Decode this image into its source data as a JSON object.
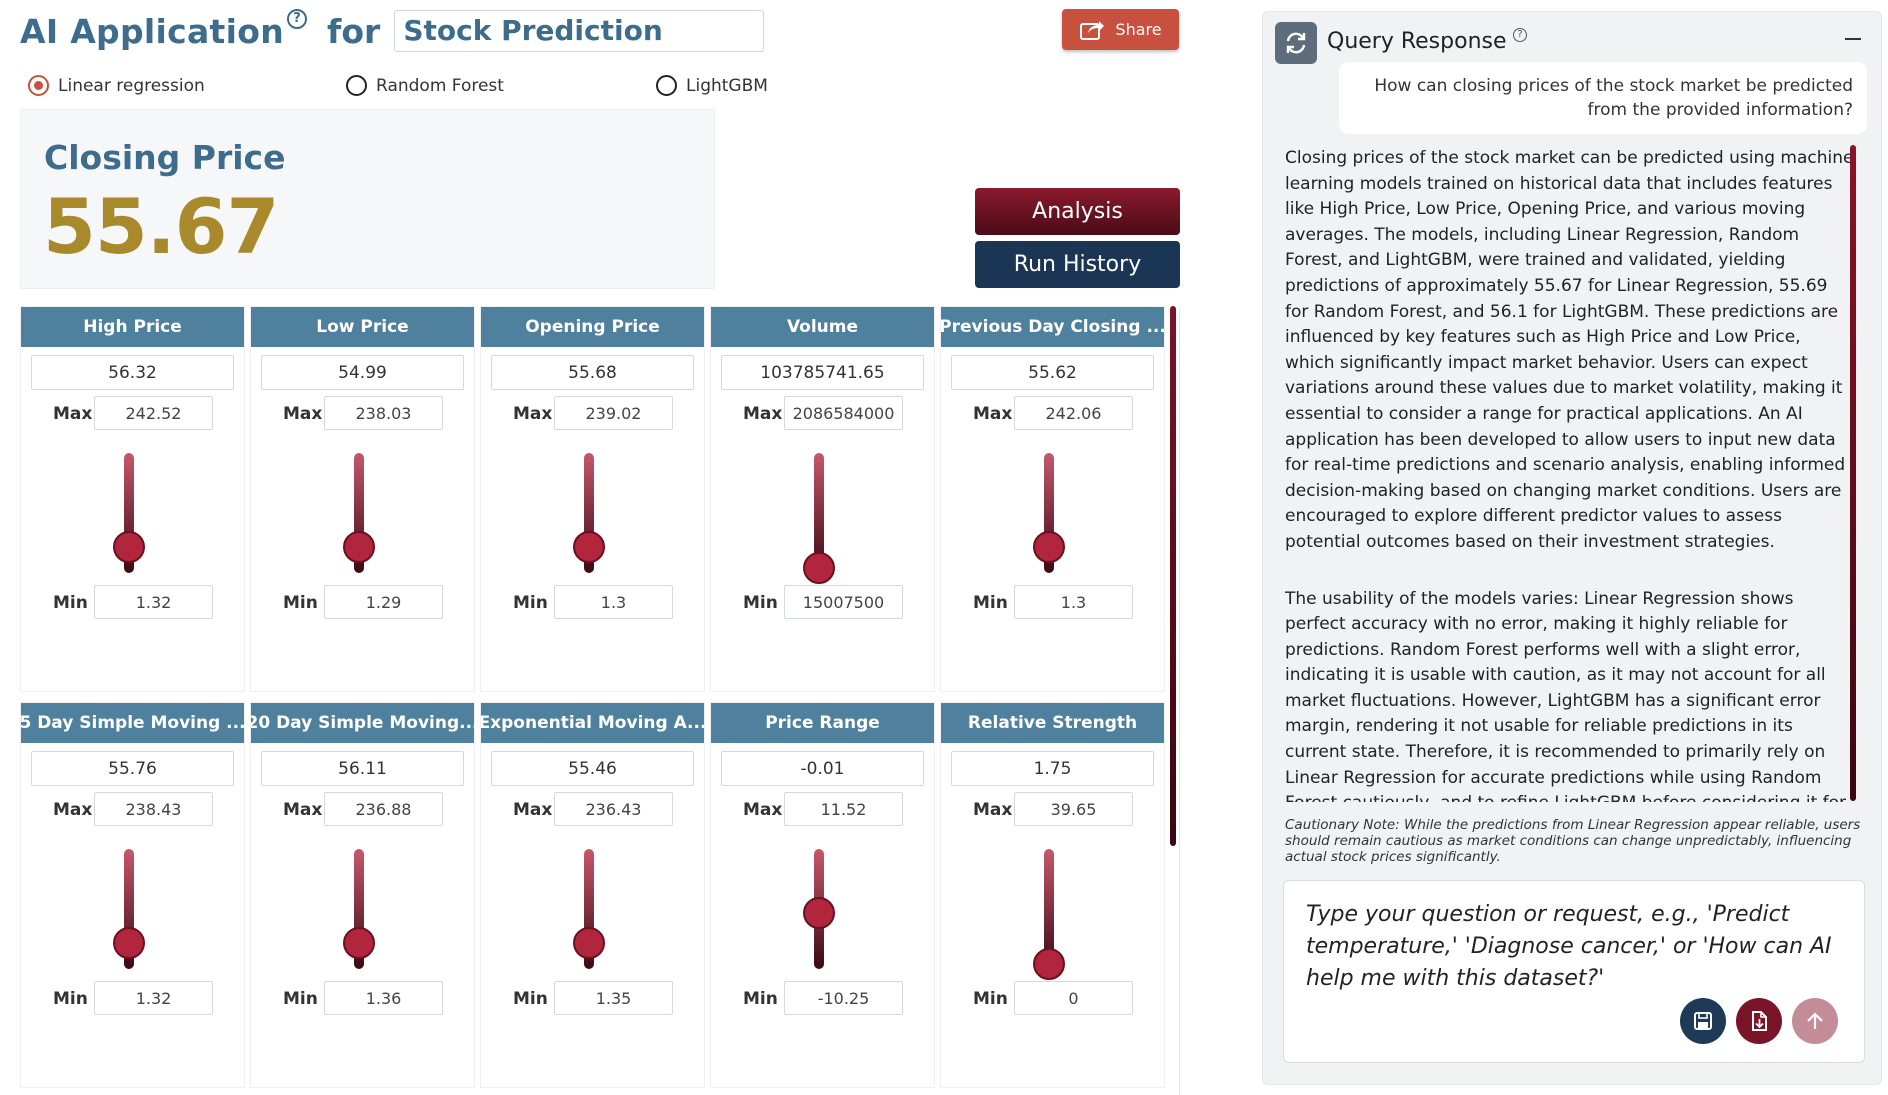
{
  "header": {
    "app_title": "AI Application",
    "help_glyph": "?",
    "for_label": "for",
    "topic": "Stock Prediction",
    "share_label": "Share"
  },
  "models": {
    "options": [
      {
        "label": "Linear regression",
        "selected": true
      },
      {
        "label": "Random Forest",
        "selected": false
      },
      {
        "label": "LightGBM",
        "selected": false
      }
    ]
  },
  "prediction": {
    "label": "Closing Price",
    "value": "55.67"
  },
  "actions": {
    "analysis_label": "Analysis",
    "history_label": "Run History"
  },
  "features": [
    {
      "title": "High Price",
      "value": "56.32",
      "max_label": "Max",
      "max": "242.52",
      "min_label": "Min",
      "min": "1.32",
      "level": 0.22
    },
    {
      "title": "Low Price",
      "value": "54.99",
      "max_label": "Max",
      "max": "238.03",
      "min_label": "Min",
      "min": "1.29",
      "level": 0.22
    },
    {
      "title": "Opening Price",
      "value": "55.68",
      "max_label": "Max",
      "max": "239.02",
      "min_label": "Min",
      "min": "1.3",
      "level": 0.22
    },
    {
      "title": "Volume",
      "value": "103785741.65",
      "max_label": "Max",
      "max": "2086584000",
      "min_label": "Min",
      "min": "15007500",
      "level": 0.04
    },
    {
      "title": "Previous Day Closing ...",
      "value": "55.62",
      "max_label": "Max",
      "max": "242.06",
      "min_label": "Min",
      "min": "1.3",
      "level": 0.22
    },
    {
      "title": "5 Day Simple Moving ...",
      "value": "55.76",
      "max_label": "Max",
      "max": "238.43",
      "min_label": "Min",
      "min": "1.32",
      "level": 0.22
    },
    {
      "title": "20 Day Simple Moving...",
      "value": "56.11",
      "max_label": "Max",
      "max": "236.88",
      "min_label": "Min",
      "min": "1.36",
      "level": 0.22
    },
    {
      "title": "Exponential Moving A...",
      "value": "55.46",
      "max_label": "Max",
      "max": "236.43",
      "min_label": "Min",
      "min": "1.35",
      "level": 0.22
    },
    {
      "title": "Price Range",
      "value": "-0.01",
      "max_label": "Max",
      "max": "11.52",
      "min_label": "Min",
      "min": "-10.25",
      "level": 0.47
    },
    {
      "title": "Relative Strength",
      "value": "1.75",
      "max_label": "Max",
      "max": "39.65",
      "min_label": "Min",
      "min": "0",
      "level": 0.04
    }
  ],
  "panel": {
    "title": "Query Response",
    "help_glyph": "?",
    "question": "How can closing prices of the stock market be predicted from the provided information?",
    "answer_p1": "Closing prices of the stock market can be predicted using machine learning models trained on historical data that includes features like High Price, Low Price, Opening Price, and various moving averages. The models, including Linear Regression, Random Forest, and LightGBM, were trained and validated, yielding predictions of approximately 55.67 for Linear Regression, 55.69 for Random Forest, and 56.1 for LightGBM. These predictions are influenced by key features such as High Price and Low Price, which significantly impact market behavior. Users can expect variations around these values due to market volatility, making it essential to consider a range for practical applications. An AI application has been developed to allow users to input new data for real-time predictions and scenario analysis, enabling informed decision-making based on changing market conditions. Users are encouraged to explore different predictor values to assess potential outcomes based on their investment strategies.",
    "answer_p2": "The usability of the models varies: Linear Regression shows perfect accuracy with no error, making it highly reliable for predictions. Random Forest performs well with a slight error, indicating it is usable with caution, as it may not account for all market fluctuations. However, LightGBM has a significant error margin, rendering it not usable for reliable predictions in its current state. Therefore, it is recommended to primarily rely on Linear Regression for accurate predictions while using Random Forest cautiously, and to refine LightGBM before considering it for",
    "caution": "Cautionary Note: While the predictions from Linear Regression appear reliable, users should remain cautious as market conditions can change unpredictably, influencing actual stock prices significantly.",
    "input_placeholder": "Type your question or request, e.g., 'Predict temperature,' 'Diagnose cancer,' or 'How can AI help me with this dataset?'"
  },
  "icons": {
    "share": "share-icon",
    "refresh": "refresh-icon",
    "save": "save-icon",
    "document": "document-icon",
    "send": "send-icon"
  },
  "colors": {
    "primary": "#3d6c8c",
    "value_gold": "#a8892c",
    "share_red": "#c8503e",
    "card_header": "#4f819e",
    "accent_maroon": "#7a1428",
    "navy": "#1b3654"
  }
}
